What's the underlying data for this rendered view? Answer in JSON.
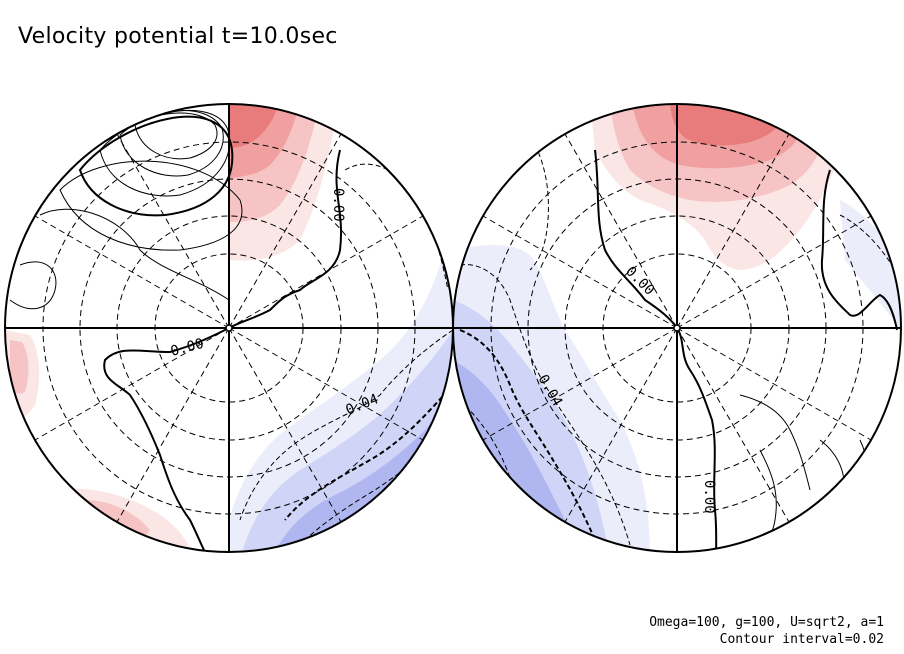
{
  "title": "Velocity potential t=10.0sec",
  "footer": {
    "params": "Omega=100, g=100, U=sqrt2, a=1",
    "contour": "Contour interval=0.02"
  },
  "contour_labels": {
    "left_upper": "0.00",
    "left_center": "0.00",
    "left_lower": "0.04",
    "right_center": "0.00",
    "right_lower": "0.04",
    "right_bottom": "0.00"
  },
  "colors": {
    "positive_1": "#fbe6e6",
    "positive_2": "#f6c4c4",
    "positive_3": "#f0a0a0",
    "positive_4": "#e87c7c",
    "negative_1": "#ecedfb",
    "negative_2": "#d0d4f6",
    "negative_3": "#b0b6f0",
    "negative_4": "#8c92ea",
    "negative_5": "#6e74e4"
  }
}
